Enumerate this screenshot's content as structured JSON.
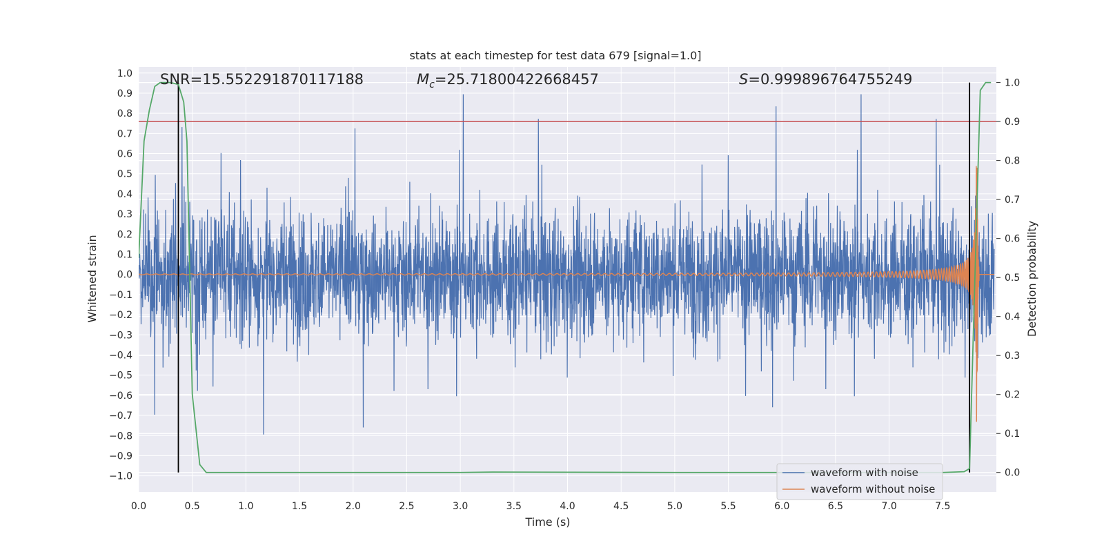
{
  "chart_data": {
    "type": "line",
    "title": "stats at each timestep for test data 679 [signal=1.0]",
    "xlabel": "Time (s)",
    "ylabel": "Whitened strain",
    "ylabel_right": "Detection probability",
    "xlim": [
      0.0,
      8.0
    ],
    "ylim": [
      -1.08,
      1.03
    ],
    "ylim_right": [
      -0.05,
      1.04
    ],
    "x_ticks": [
      "0.0",
      "0.5",
      "1.0",
      "1.5",
      "2.0",
      "2.5",
      "3.0",
      "3.5",
      "4.0",
      "4.5",
      "5.0",
      "5.5",
      "6.0",
      "6.5",
      "7.0",
      "7.5"
    ],
    "y_ticks": [
      "1.0",
      "0.9",
      "0.8",
      "0.7",
      "0.6",
      "0.5",
      "0.4",
      "0.3",
      "0.2",
      "0.1",
      "0.0",
      "−0.1",
      "−0.2",
      "−0.3",
      "−0.4",
      "−0.5",
      "−0.6",
      "−0.7",
      "−0.8",
      "−0.9",
      "−1.0"
    ],
    "y_ticks_right": [
      "1.0",
      "0.9",
      "0.8",
      "0.7",
      "0.6",
      "0.5",
      "0.4",
      "0.3",
      "0.2",
      "0.1",
      "0.0"
    ],
    "annotations": {
      "snr": "SNR=15.552291870117188",
      "mc_symbol": "M",
      "mc_sub": "c",
      "mc_value": "=25.71800422668457",
      "s_symbol": "S",
      "s_value": "=0.999896764755249"
    },
    "threshold": 0.9,
    "vlines": [
      0.37,
      7.75
    ],
    "series": [
      {
        "name": "waveform with noise",
        "color": "#4c72b0",
        "note": "whitened noisy strain, amplitude envelope ~±0.45 with spikes up to ±0.9",
        "envelope": 0.45
      },
      {
        "name": "waveform without noise",
        "color": "#dd8452",
        "note": "chirp signal growing in amplitude, merger near t=7.8 s",
        "t_merger": 7.82
      },
      {
        "name": "detection probability",
        "color": "#55a868",
        "axis": "right",
        "x": [
          0.0,
          0.05,
          0.1,
          0.15,
          0.2,
          0.3,
          0.37,
          0.42,
          0.45,
          0.5,
          0.57,
          0.63,
          1.0,
          3.0,
          3.3,
          5.0,
          7.5,
          7.7,
          7.75,
          7.8,
          7.85,
          7.9,
          7.95
        ],
        "y": [
          0.55,
          0.85,
          0.93,
          0.99,
          1.0,
          1.0,
          0.995,
          0.95,
          0.85,
          0.2,
          0.02,
          0.0,
          0.0,
          0.0,
          0.001,
          0.0,
          0.0,
          0.002,
          0.01,
          0.5,
          0.98,
          1.0,
          1.0
        ]
      }
    ],
    "legend": [
      "waveform with noise",
      "waveform without noise"
    ],
    "legend_position": "lower-right"
  },
  "colors": {
    "threshold": "#c44e52",
    "vline": "#000000",
    "grid": "#ffffff",
    "background": "#eaeaf2"
  }
}
